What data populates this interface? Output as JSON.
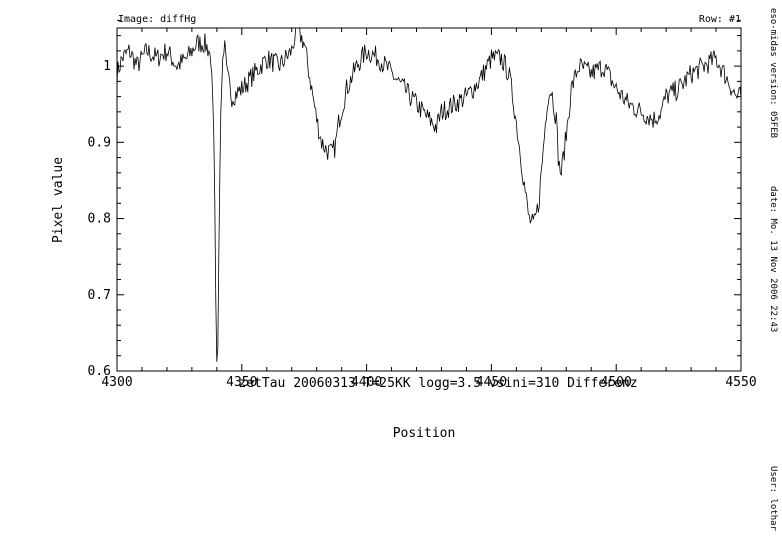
{
  "header": {
    "image_label": "Image: diffHg",
    "row_label": "Row: #1"
  },
  "side_info": {
    "version": "eso-midas version: 05FEB",
    "date": "date: Mo. 13 Nov 2006 22:43",
    "user": "User: lothar"
  },
  "chart_data": {
    "type": "line",
    "title": "zetTau 20060313 T=25KK logg=3.5 vsini=310 Differenz",
    "xlabel": "Position",
    "ylabel": "Pixel value",
    "xlim": [
      4300,
      4550
    ],
    "ylim": [
      0.6,
      1.05
    ],
    "xticks": [
      "4300",
      "4350",
      "4400",
      "4450",
      "4500",
      "4550"
    ],
    "yticks": [
      "0.6",
      "0.7",
      "0.8",
      "0.9",
      "1"
    ],
    "grid": false,
    "series": [
      {
        "x": [
          4300,
          4302,
          4305,
          4308,
          4312,
          4316,
          4320,
          4324,
          4328,
          4332,
          4335,
          4337,
          4338,
          4338.7,
          4339.3,
          4339.8,
          4340.3,
          4340.8,
          4341.5,
          4342.5,
          4343,
          4344,
          4346,
          4350,
          4355,
          4360,
          4365,
          4370,
          4372,
          4375,
          4378,
          4380,
          4382,
          4384,
          4386,
          4387.5,
          4389,
          4392,
          4396,
          4400,
          4405,
          4410,
          4415,
          4420,
          4425,
          4428,
          4430,
          4435,
          4440,
          4445,
          4450,
          4454,
          4457,
          4459,
          4461,
          4463,
          4465,
          4467,
          4469,
          4471,
          4472.5,
          4474,
          4476,
          4477,
          4478,
          4480,
          4482,
          4485,
          4490,
          4495,
          4500,
          4505,
          4510,
          4515,
          4518,
          4520,
          4525,
          4530,
          4535,
          4540,
          4545,
          4548,
          4550
        ],
        "y": [
          0.99,
          1.01,
          1.02,
          1.0,
          1.02,
          1.01,
          1.02,
          1.0,
          1.01,
          1.03,
          1.03,
          1.02,
          0.99,
          0.93,
          0.8,
          0.62,
          0.6,
          0.75,
          0.93,
          1.02,
          1.03,
          0.99,
          0.96,
          0.97,
          0.99,
          1.01,
          1.0,
          1.02,
          1.05,
          1.03,
          0.97,
          0.93,
          0.9,
          0.89,
          0.885,
          0.895,
          0.93,
          0.97,
          1.0,
          1.02,
          1.01,
          0.99,
          0.97,
          0.95,
          0.93,
          0.92,
          0.94,
          0.95,
          0.96,
          0.98,
          1.01,
          1.01,
          0.99,
          0.95,
          0.9,
          0.85,
          0.8,
          0.79,
          0.82,
          0.9,
          0.96,
          0.97,
          0.93,
          0.87,
          0.86,
          0.91,
          0.97,
          1.0,
          0.99,
          1.0,
          0.97,
          0.95,
          0.94,
          0.93,
          0.94,
          0.96,
          0.97,
          0.99,
          1.0,
          1.01,
          0.98,
          0.96,
          0.96
        ]
      }
    ]
  }
}
